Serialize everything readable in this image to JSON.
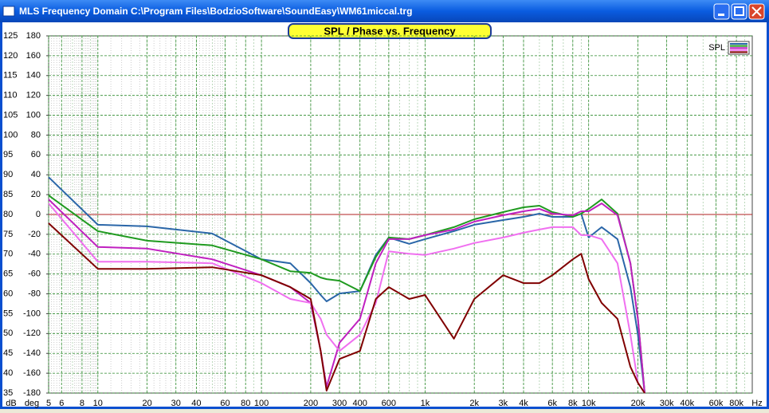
{
  "window": {
    "title": "MLS Frequency Domain  C:\\Program Files\\BodzioSoftware\\SoundEasy\\WM61miccal.trg"
  },
  "chart_data": {
    "type": "line",
    "title": "SPL / Phase vs. Frequency",
    "y_label": "dB",
    "y2_label": "deg",
    "x_label": "Hz",
    "legend_label": "SPL",
    "legend_position": "top-right",
    "x_scale": "log",
    "grid": true,
    "hline": 80,
    "hline_color": "#b02020",
    "xlim": [
      5,
      100000
    ],
    "xticks": [
      5,
      6,
      8,
      10,
      20,
      30,
      40,
      60,
      80,
      100,
      200,
      300,
      400,
      600,
      {
        "value": 1000,
        "label": "1k"
      },
      {
        "value": 2000,
        "label": "2k"
      },
      {
        "value": 3000,
        "label": "3k"
      },
      {
        "value": 4000,
        "label": "4k"
      },
      {
        "value": 6000,
        "label": "6k"
      },
      {
        "value": 8000,
        "label": "8k"
      },
      {
        "value": 10000,
        "label": "10k"
      },
      {
        "value": 20000,
        "label": "20k"
      },
      {
        "value": 30000,
        "label": "30k"
      },
      {
        "value": 40000,
        "label": "40k"
      },
      {
        "value": 60000,
        "label": "60k"
      },
      {
        "value": 80000,
        "label": "80k"
      }
    ],
    "ylim": [
      35,
      125
    ],
    "yticks": [
      35,
      40,
      45,
      50,
      55,
      60,
      65,
      70,
      75,
      80,
      85,
      90,
      95,
      100,
      105,
      110,
      115,
      120,
      125
    ],
    "y2lim": [
      -180,
      180
    ],
    "y2ticks": [
      -180,
      -160,
      -140,
      -120,
      -100,
      -80,
      -60,
      -40,
      -20,
      0,
      20,
      40,
      60,
      80,
      100,
      120,
      140,
      160,
      180
    ],
    "x": [
      5,
      10,
      20,
      50,
      100,
      150,
      200,
      230,
      250,
      300,
      400,
      500,
      600,
      800,
      1000,
      1500,
      2000,
      3000,
      4000,
      5000,
      6000,
      8000,
      9000,
      10000,
      12000,
      15000,
      18000,
      20000,
      22000
    ],
    "series": [
      {
        "color": "#2a66a8",
        "values": [
          89.4,
          77.4,
          77,
          75.2,
          68.7,
          67.7,
          62.7,
          59.7,
          58.1,
          60.1,
          60.7,
          69.8,
          74.2,
          72.6,
          73.8,
          75.8,
          77.4,
          78.6,
          79.4,
          80.2,
          79.4,
          79.4,
          80.2,
          74.2,
          76.8,
          73.8,
          61.7,
          49.7,
          35
        ]
      },
      {
        "color": "#1f9a1f",
        "values": [
          84.8,
          75.8,
          73.4,
          72.2,
          68.7,
          65.7,
          65.3,
          64.1,
          63.7,
          63.3,
          60.7,
          69.3,
          74.2,
          73.8,
          74.8,
          76.8,
          78.8,
          80.6,
          81.8,
          82.2,
          80.6,
          79.4,
          80.2,
          81.4,
          83.8,
          80.2,
          67.7,
          53.7,
          35
        ]
      },
      {
        "color": "#c020c0",
        "values": [
          83.8,
          71.8,
          71.4,
          68.7,
          64.7,
          61.7,
          57.7,
          45.6,
          36.6,
          47.7,
          53.7,
          67.7,
          73.8,
          73.8,
          74.8,
          76.2,
          78.2,
          79.8,
          80.8,
          81.4,
          80.2,
          79.8,
          80.8,
          80.8,
          82.8,
          79.8,
          67.7,
          53.7,
          35
        ]
      },
      {
        "color": "#f070f0",
        "values": [
          82.8,
          68.1,
          68.1,
          67.7,
          62.7,
          58.7,
          57.7,
          53.7,
          49.7,
          45.6,
          49.7,
          57.7,
          70.7,
          70.1,
          69.8,
          71.4,
          72.8,
          74.2,
          75.4,
          76.2,
          76.8,
          76.8,
          74.8,
          74.8,
          73.8,
          67.7,
          49.7,
          37.6,
          35
        ]
      },
      {
        "color": "#800000",
        "values": [
          77.8,
          66.3,
          66.3,
          66.7,
          64.7,
          61.7,
          58.7,
          45.6,
          35.6,
          43.6,
          45.6,
          58.7,
          61.7,
          58.7,
          59.7,
          48.7,
          58.7,
          64.7,
          62.7,
          62.7,
          64.7,
          68.7,
          70.1,
          63.7,
          57.7,
          53.7,
          41.6,
          37.6,
          35
        ]
      }
    ]
  }
}
